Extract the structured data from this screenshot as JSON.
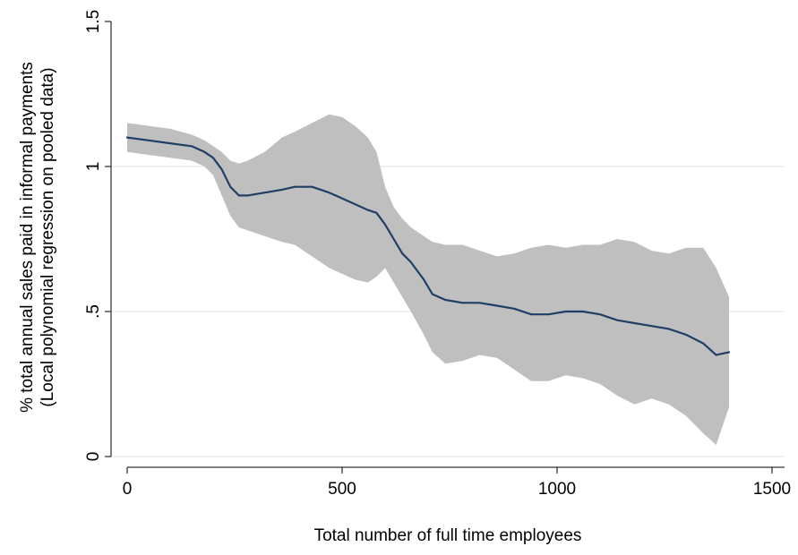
{
  "chart_data": {
    "type": "line",
    "title": "",
    "xlabel": "Total number of full time employees",
    "ylabel_lines": [
      "% total annual sales paid in informal payments",
      "(Local polynomial regression on pooled data)"
    ],
    "xlim": [
      0,
      1500
    ],
    "ylim": [
      0,
      1.5
    ],
    "x_ticks": [
      {
        "value": 0,
        "label": "0"
      },
      {
        "value": 500,
        "label": "500"
      },
      {
        "value": 1000,
        "label": "1000"
      },
      {
        "value": 1500,
        "label": "1500"
      }
    ],
    "y_ticks": [
      {
        "value": 0,
        "label": "0"
      },
      {
        "value": 0.5,
        "label": ".5"
      },
      {
        "value": 1,
        "label": "1"
      },
      {
        "value": 1.5,
        "label": "1.5"
      }
    ],
    "grid": "horizontal",
    "legend": "none",
    "colors": {
      "line": "#1f3f66",
      "band": "#bfbfbf",
      "grid": "#e8eeee",
      "axis": "#000000"
    },
    "series": [
      {
        "kind": "line",
        "x": [
          0,
          50,
          100,
          150,
          180,
          200,
          220,
          240,
          260,
          280,
          320,
          360,
          390,
          430,
          470,
          500,
          530,
          560,
          580,
          600,
          620,
          640,
          660,
          690,
          710,
          740,
          780,
          820,
          860,
          900,
          940,
          980,
          1020,
          1060,
          1100,
          1140,
          1180,
          1220,
          1260,
          1300,
          1340,
          1370,
          1400
        ],
        "y": [
          1.1,
          1.09,
          1.08,
          1.07,
          1.05,
          1.03,
          0.99,
          0.93,
          0.9,
          0.9,
          0.91,
          0.92,
          0.93,
          0.93,
          0.91,
          0.89,
          0.87,
          0.85,
          0.84,
          0.8,
          0.75,
          0.7,
          0.67,
          0.61,
          0.56,
          0.54,
          0.53,
          0.53,
          0.52,
          0.51,
          0.49,
          0.49,
          0.5,
          0.5,
          0.49,
          0.47,
          0.46,
          0.45,
          0.44,
          0.42,
          0.39,
          0.35,
          0.36
        ]
      },
      {
        "kind": "band",
        "x": [
          0,
          50,
          100,
          150,
          180,
          200,
          220,
          240,
          260,
          280,
          320,
          360,
          390,
          430,
          470,
          500,
          530,
          560,
          580,
          600,
          620,
          640,
          660,
          690,
          710,
          740,
          780,
          820,
          860,
          900,
          940,
          980,
          1020,
          1060,
          1100,
          1140,
          1180,
          1220,
          1260,
          1300,
          1340,
          1370,
          1400
        ],
        "lower": [
          1.05,
          1.04,
          1.03,
          1.02,
          1.0,
          0.97,
          0.9,
          0.83,
          0.79,
          0.78,
          0.76,
          0.74,
          0.73,
          0.69,
          0.65,
          0.63,
          0.61,
          0.6,
          0.62,
          0.65,
          0.6,
          0.55,
          0.5,
          0.42,
          0.36,
          0.32,
          0.33,
          0.35,
          0.34,
          0.3,
          0.26,
          0.26,
          0.28,
          0.27,
          0.25,
          0.21,
          0.18,
          0.2,
          0.18,
          0.14,
          0.08,
          0.04,
          0.17
        ],
        "upper": [
          1.15,
          1.14,
          1.13,
          1.11,
          1.09,
          1.07,
          1.05,
          1.02,
          1.01,
          1.02,
          1.05,
          1.1,
          1.12,
          1.15,
          1.18,
          1.17,
          1.14,
          1.1,
          1.05,
          0.93,
          0.86,
          0.82,
          0.79,
          0.76,
          0.74,
          0.73,
          0.73,
          0.71,
          0.69,
          0.7,
          0.72,
          0.73,
          0.72,
          0.73,
          0.73,
          0.75,
          0.74,
          0.71,
          0.7,
          0.72,
          0.72,
          0.65,
          0.55
        ]
      }
    ]
  }
}
